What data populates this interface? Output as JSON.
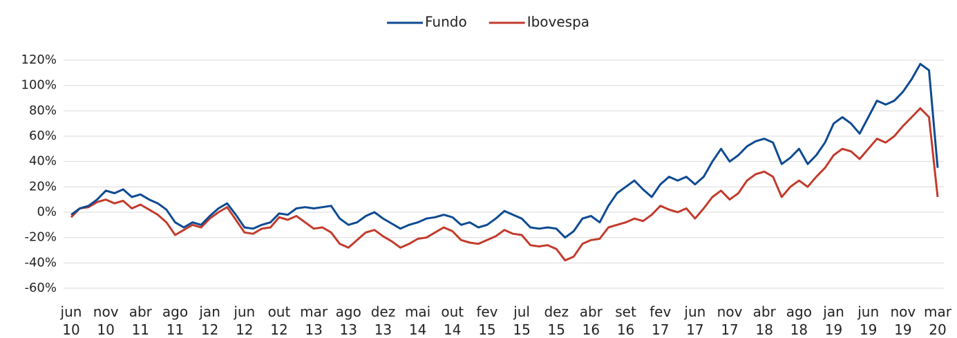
{
  "chart_data": {
    "type": "line",
    "categories": [
      "jun 10",
      null,
      null,
      null,
      "nov 10",
      null,
      null,
      null,
      "abr 11",
      null,
      null,
      null,
      "ago 11",
      null,
      null,
      null,
      "jan 12",
      null,
      null,
      null,
      "jun 12",
      null,
      null,
      null,
      "out 12",
      null,
      null,
      null,
      "mar 13",
      null,
      null,
      null,
      "ago 13",
      null,
      null,
      null,
      "dez 13",
      null,
      null,
      null,
      "mai 14",
      null,
      null,
      null,
      "out 14",
      null,
      null,
      null,
      "fev 15",
      null,
      null,
      null,
      "jul 15",
      null,
      null,
      null,
      "dez 15",
      null,
      null,
      null,
      "abr 16",
      null,
      null,
      null,
      "set 16",
      null,
      null,
      null,
      "fev 17",
      null,
      null,
      null,
      "jun 17",
      null,
      null,
      null,
      "nov 17",
      null,
      null,
      null,
      "abr 18",
      null,
      null,
      null,
      "ago 18",
      null,
      null,
      null,
      "jan 19",
      null,
      null,
      null,
      "jun 19",
      null,
      null,
      null,
      "nov 19",
      null,
      null,
      null,
      "mar 20"
    ],
    "series": [
      {
        "name": "Fundo",
        "color": "#0d4a92",
        "values": [
          -2,
          3,
          5,
          10,
          17,
          15,
          18,
          12,
          14,
          10,
          7,
          2,
          -8,
          -12,
          -8,
          -10,
          -3,
          3,
          7,
          -2,
          -12,
          -13,
          -10,
          -8,
          -1,
          -2,
          3,
          4,
          3,
          4,
          5,
          -5,
          -10,
          -8,
          -3,
          0,
          -5,
          -9,
          -13,
          -10,
          -8,
          -5,
          -4,
          -2,
          -4,
          -10,
          -8,
          -12,
          -10,
          -5,
          1,
          -2,
          -5,
          -12,
          -13,
          -12,
          -13,
          -20,
          -15,
          -5,
          -3,
          -8,
          5,
          15,
          20,
          25,
          18,
          12,
          22,
          28,
          25,
          28,
          22,
          28,
          40,
          50,
          40,
          45,
          52,
          56,
          58,
          55,
          38,
          43,
          50,
          38,
          45,
          55,
          70,
          75,
          70,
          62,
          75,
          88,
          85,
          88,
          95,
          105,
          117,
          112,
          35
        ]
      },
      {
        "name": "Ibovespa",
        "color": "#c23b2c",
        "values": [
          -4,
          3,
          4,
          8,
          10,
          7,
          9,
          3,
          6,
          2,
          -2,
          -8,
          -18,
          -14,
          -10,
          -12,
          -5,
          0,
          4,
          -6,
          -16,
          -17,
          -13,
          -12,
          -4,
          -6,
          -3,
          -8,
          -13,
          -12,
          -16,
          -25,
          -28,
          -22,
          -16,
          -14,
          -19,
          -23,
          -28,
          -25,
          -21,
          -20,
          -16,
          -12,
          -15,
          -22,
          -24,
          -25,
          -22,
          -19,
          -14,
          -17,
          -18,
          -26,
          -27,
          -26,
          -29,
          -38,
          -35,
          -25,
          -22,
          -21,
          -12,
          -10,
          -8,
          -5,
          -7,
          -2,
          5,
          2,
          0,
          3,
          -5,
          3,
          12,
          17,
          10,
          15,
          25,
          30,
          32,
          28,
          12,
          20,
          25,
          20,
          28,
          35,
          45,
          50,
          48,
          42,
          50,
          58,
          55,
          60,
          68,
          75,
          82,
          75,
          12
        ]
      }
    ],
    "ylim": [
      -60,
      120
    ],
    "yticks": [
      {
        "value": -60,
        "label": "-60%"
      },
      {
        "value": -40,
        "label": "-40%"
      },
      {
        "value": -20,
        "label": "-20%"
      },
      {
        "value": 0,
        "label": "0%"
      },
      {
        "value": 20,
        "label": "20%"
      },
      {
        "value": 40,
        "label": "40%"
      },
      {
        "value": 60,
        "label": "60%"
      },
      {
        "value": 80,
        "label": "80%"
      },
      {
        "value": 100,
        "label": "100%"
      },
      {
        "value": 120,
        "label": "120%"
      }
    ],
    "grid": true,
    "legend": "top"
  }
}
